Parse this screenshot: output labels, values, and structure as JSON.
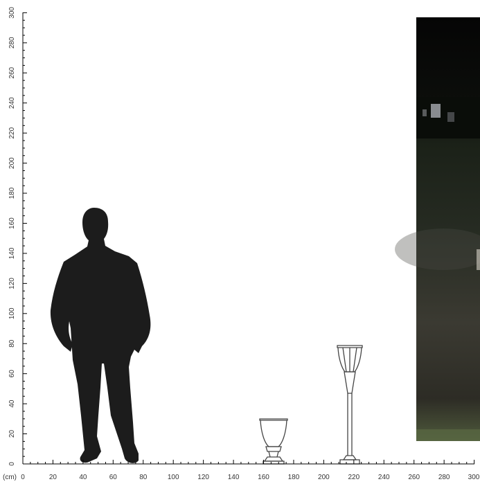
{
  "scale": {
    "unit_label": "(cm)",
    "x_ticks": [
      "0",
      "20",
      "40",
      "60",
      "80",
      "100",
      "120",
      "140",
      "160",
      "180",
      "200",
      "220",
      "240",
      "260",
      "280",
      "300"
    ],
    "y_ticks": [
      "0",
      "20",
      "40",
      "60",
      "80",
      "100",
      "120",
      "140",
      "160",
      "180",
      "200",
      "220",
      "240",
      "260",
      "280",
      "300"
    ]
  },
  "figures": [
    {
      "name": "human-silhouette",
      "height_cm": 170
    },
    {
      "name": "short-planter",
      "height_cm": 30
    },
    {
      "name": "tall-planter",
      "height_cm": 79
    }
  ],
  "photo": {
    "description_icon": "night-garden-photo"
  },
  "colors": {
    "silhouette": "#1c1c1c",
    "outline": "#444444",
    "axis": "#000000"
  }
}
